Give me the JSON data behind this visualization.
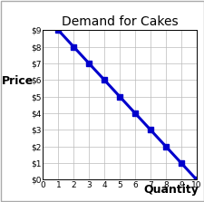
{
  "title": "Demand for Cakes",
  "xlabel": "Quantity",
  "ylabel": "Price",
  "x": [
    1,
    2,
    3,
    4,
    5,
    6,
    7,
    8,
    9,
    10
  ],
  "y": [
    9,
    8,
    7,
    6,
    5,
    4,
    3,
    2,
    1,
    0
  ],
  "line_color": "#0000CC",
  "marker": "s",
  "marker_size": 4,
  "line_width": 2.2,
  "xlim": [
    0,
    10
  ],
  "ylim": [
    0,
    9
  ],
  "xticks": [
    0,
    1,
    2,
    3,
    4,
    5,
    6,
    7,
    8,
    9,
    10
  ],
  "yticks": [
    0,
    1,
    2,
    3,
    4,
    5,
    6,
    7,
    8,
    9
  ],
  "ytick_labels": [
    "$0",
    "$1",
    "$2",
    "$3",
    "$4",
    "$5",
    "$6",
    "$7",
    "$8",
    "$9"
  ],
  "grid_color": "#bbbbbb",
  "background_color": "#ffffff",
  "title_fontsize": 10,
  "xlabel_fontsize": 9,
  "ylabel_fontsize": 9,
  "tick_fontsize": 6.5,
  "outer_border_color": "#aaaaaa"
}
